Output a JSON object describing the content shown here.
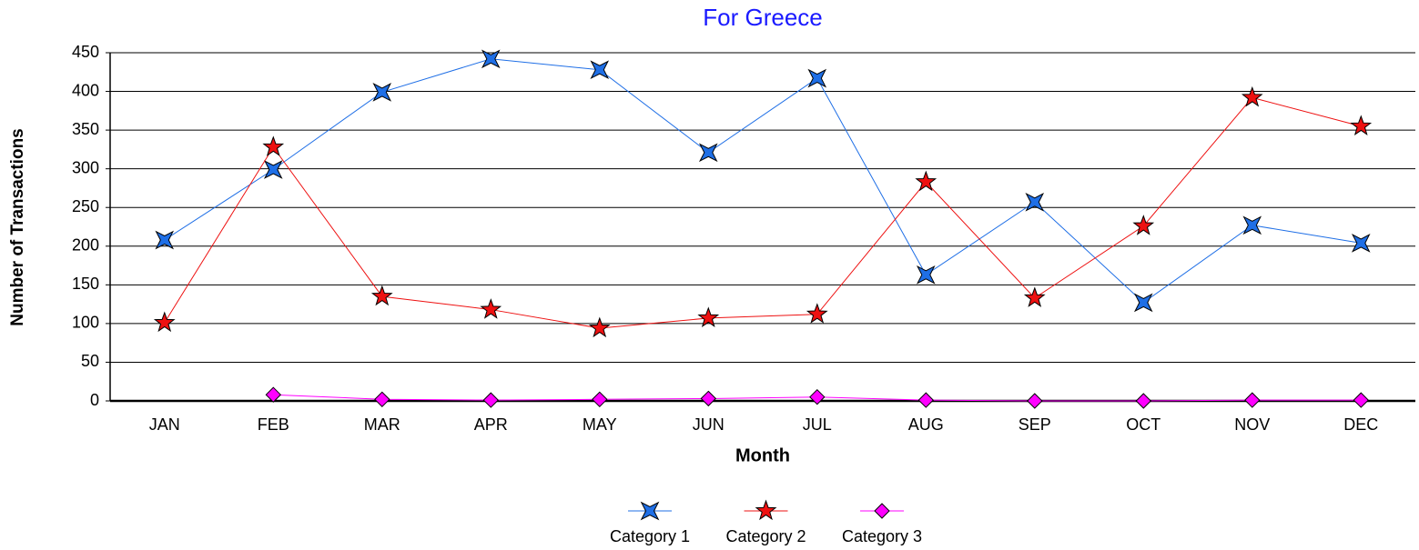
{
  "chart_data": {
    "type": "line",
    "title": "For Greece",
    "x_label": "Month",
    "y_label": "Number of Transactions",
    "categories": [
      "JAN",
      "FEB",
      "MAR",
      "APR",
      "MAY",
      "JUN",
      "JUL",
      "AUG",
      "SEP",
      "OCT",
      "NOV",
      "DEC"
    ],
    "series": [
      {
        "name": "Category 1",
        "color": "#1f6fe6",
        "values": [
          208,
          299,
          399,
          442,
          428,
          321,
          417,
          163,
          257,
          127,
          227,
          204
        ]
      },
      {
        "name": "Category 2",
        "color": "#ee1111",
        "values": [
          101,
          328,
          135,
          118,
          94,
          107,
          112,
          283,
          133,
          226,
          392,
          355
        ]
      },
      {
        "name": "Category 3",
        "color": "#ff00ff",
        "values": [
          null,
          8,
          2,
          1,
          2,
          3,
          5,
          1,
          0,
          0,
          1,
          1
        ]
      }
    ],
    "ylim": [
      0,
      450
    ],
    "yticks": [
      0,
      50,
      100,
      150,
      200,
      250,
      300,
      350,
      400,
      450
    ],
    "grid": true,
    "legend": "bottom"
  }
}
